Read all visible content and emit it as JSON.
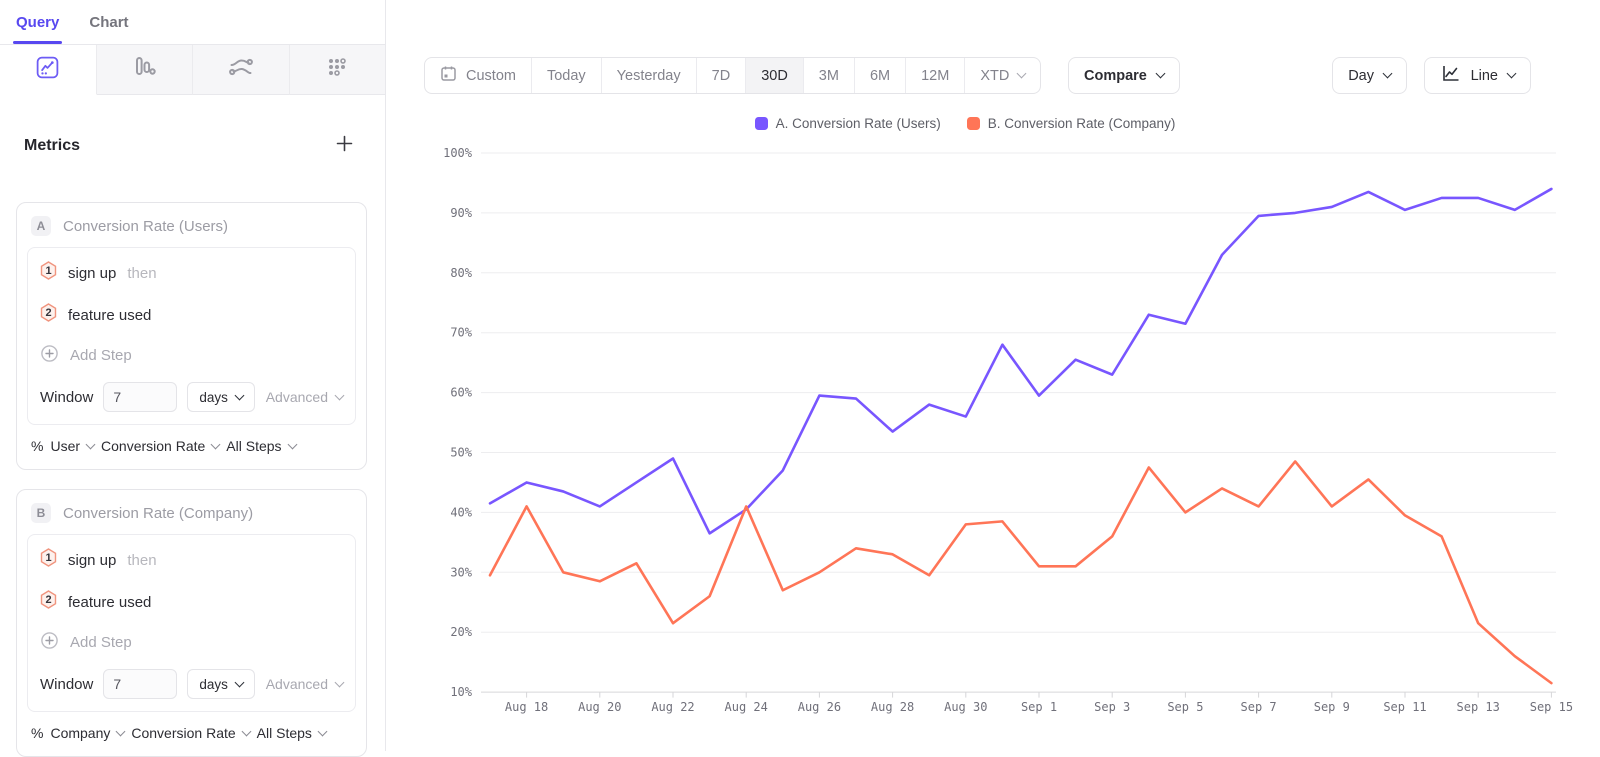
{
  "colors": {
    "accent_purple": "#5848F0",
    "series_a": "#7856FF",
    "series_b": "#FF7557"
  },
  "sidebar": {
    "tabs": [
      {
        "label": "Query"
      },
      {
        "label": "Chart"
      }
    ],
    "icon_tabs": [
      "insights-icon",
      "funnels-icon",
      "flows-icon",
      "retention-icon"
    ],
    "metrics_header": {
      "title": "Metrics"
    },
    "metric_cards": [
      {
        "badge": "A",
        "title": "Conversion Rate (Users)",
        "steps": [
          {
            "num": "1",
            "event": "sign up",
            "suffix": "then"
          },
          {
            "num": "2",
            "event": "feature used",
            "suffix": ""
          }
        ],
        "add_step_label": "Add Step",
        "window": {
          "label": "Window",
          "value": "7",
          "unit": "days",
          "advanced_label": "Advanced"
        },
        "measure": {
          "symbol": "%",
          "entity": "User",
          "metric": "Conversion Rate",
          "scope": "All Steps"
        }
      },
      {
        "badge": "B",
        "title": "Conversion Rate (Company)",
        "steps": [
          {
            "num": "1",
            "event": "sign up",
            "suffix": "then"
          },
          {
            "num": "2",
            "event": "feature used",
            "suffix": ""
          }
        ],
        "add_step_label": "Add Step",
        "window": {
          "label": "Window",
          "value": "7",
          "unit": "days",
          "advanced_label": "Advanced"
        },
        "measure": {
          "symbol": "%",
          "entity": "Company",
          "metric": "Conversion Rate",
          "scope": "All Steps"
        }
      }
    ]
  },
  "toolbar": {
    "date_ranges": [
      {
        "label": "Custom"
      },
      {
        "label": "Today"
      },
      {
        "label": "Yesterday"
      },
      {
        "label": "7D"
      },
      {
        "label": "30D",
        "active": true
      },
      {
        "label": "3M"
      },
      {
        "label": "6M"
      },
      {
        "label": "12M"
      },
      {
        "label": "XTD"
      }
    ],
    "compare_label": "Compare",
    "granularity_label": "Day",
    "chart_type_label": "Line"
  },
  "chart_data": {
    "type": "line",
    "x": [
      "Aug 17",
      "Aug 18",
      "Aug 19",
      "Aug 20",
      "Aug 21",
      "Aug 22",
      "Aug 23",
      "Aug 24",
      "Aug 25",
      "Aug 26",
      "Aug 27",
      "Aug 28",
      "Aug 29",
      "Aug 30",
      "Aug 31",
      "Sep 1",
      "Sep 2",
      "Sep 3",
      "Sep 4",
      "Sep 5",
      "Sep 6",
      "Sep 7",
      "Sep 8",
      "Sep 9",
      "Sep 10",
      "Sep 11",
      "Sep 12",
      "Sep 13",
      "Sep 14",
      "Sep 15"
    ],
    "x_tick_labels": [
      "Aug 18",
      "Aug 20",
      "Aug 22",
      "Aug 24",
      "Aug 26",
      "Aug 28",
      "Aug 30",
      "Sep 1",
      "Sep 3",
      "Sep 5",
      "Sep 7",
      "Sep 9",
      "Sep 11",
      "Sep 13",
      "Sep 15"
    ],
    "series": [
      {
        "name": "A. Conversion Rate (Users)",
        "color": "#7856FF",
        "values": [
          41.5,
          45,
          43.5,
          41,
          45,
          49,
          36.5,
          40.5,
          47,
          59.5,
          59,
          53.5,
          58,
          56,
          68,
          59.5,
          65.5,
          63,
          73,
          71.5,
          83,
          89.5,
          90,
          91,
          93.5,
          90.5,
          92.5,
          92.5,
          90.5,
          94
        ]
      },
      {
        "name": "B. Conversion Rate (Company)",
        "color": "#FF7557",
        "values": [
          29.5,
          41,
          30,
          28.5,
          31.5,
          21.5,
          26,
          41,
          27,
          30,
          34,
          33,
          29.5,
          38,
          38.5,
          31,
          31,
          36,
          47.5,
          40,
          44,
          41,
          48.5,
          41,
          45.5,
          39.5,
          36,
          21.5,
          16,
          11.5
        ]
      }
    ],
    "y_ticks": [
      "100%",
      "90%",
      "80%",
      "70%",
      "60%",
      "50%",
      "40%",
      "30%",
      "20%",
      "10%"
    ],
    "ylim": [
      10,
      100
    ],
    "xlabel": "",
    "ylabel": "",
    "grid": true,
    "legend_position": "top"
  }
}
